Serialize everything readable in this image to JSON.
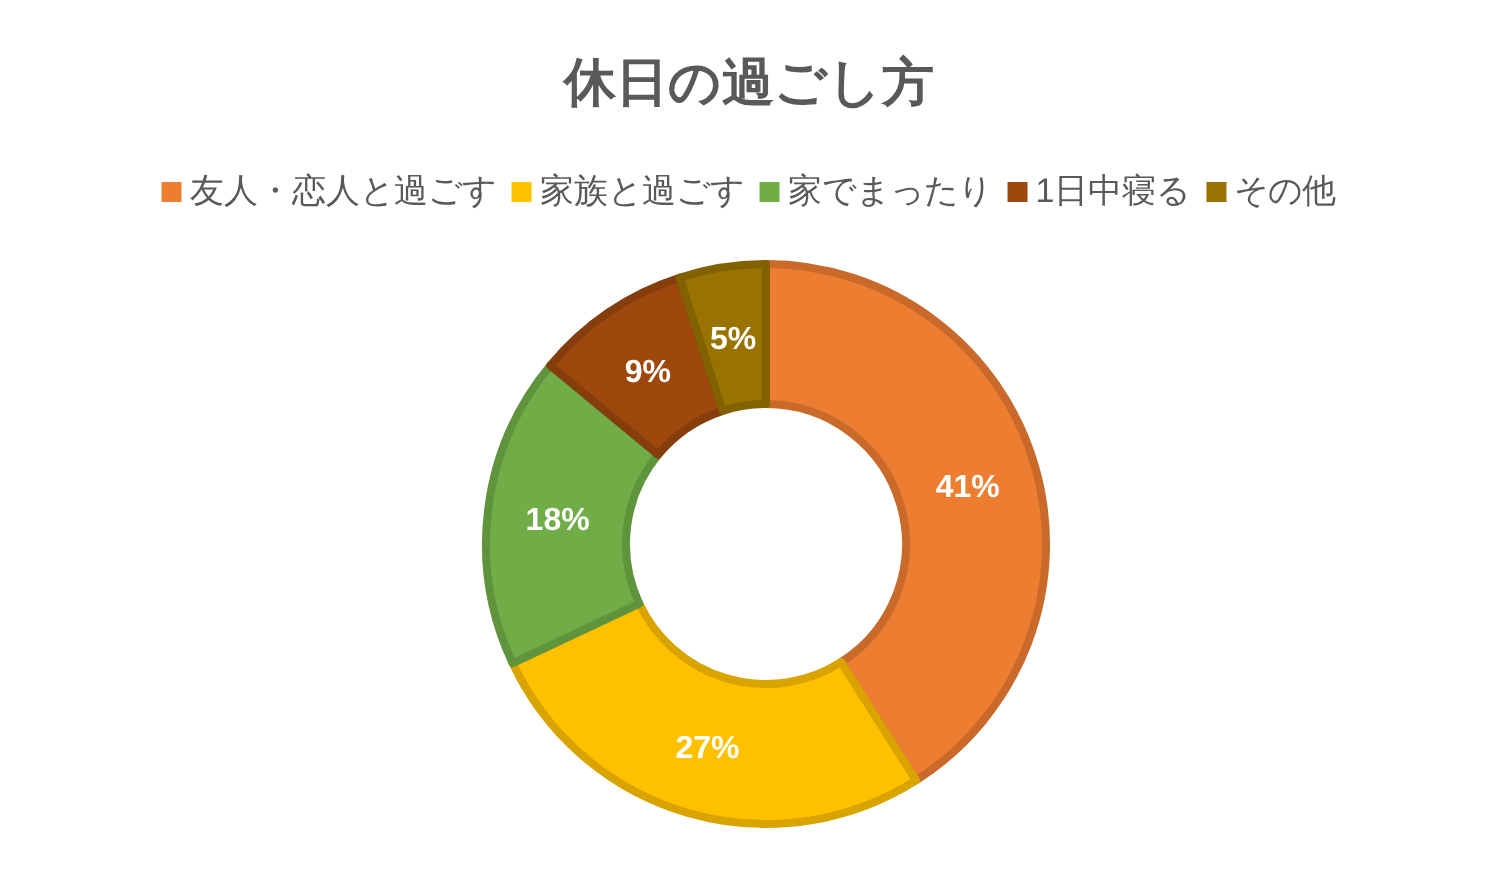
{
  "chart_data": {
    "type": "donut",
    "title": "休日の過ごし方",
    "categories": [
      "友人・恋人と過ごす",
      "家族と過ごす",
      "家でまったり",
      "1日中寝る",
      "その他"
    ],
    "values": [
      41,
      27,
      18,
      9,
      5
    ],
    "colors": [
      "#ed7d31",
      "#ffc000",
      "#70ad47",
      "#9e480e",
      "#997300"
    ],
    "value_labels": [
      "41%",
      "27%",
      "18%",
      "9%",
      "5%"
    ],
    "legend": "top"
  }
}
